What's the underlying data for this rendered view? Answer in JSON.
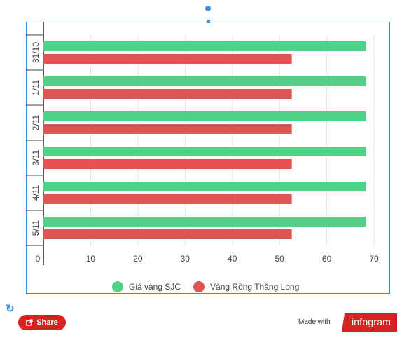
{
  "chart_data": {
    "type": "bar",
    "orientation": "horizontal",
    "categories": [
      "31/10",
      "1/11",
      "2/11",
      "3/11",
      "4/11",
      "5/11"
    ],
    "series": [
      {
        "name": "Giá vàng SJC",
        "color": "#52d087",
        "values": [
          68.3,
          68.3,
          68.3,
          68.3,
          68.3,
          68.3
        ]
      },
      {
        "name": "Vàng Rồng Thăng Long",
        "color": "#df5353",
        "values": [
          52.6,
          52.6,
          52.6,
          52.6,
          52.6,
          52.6
        ]
      }
    ],
    "xlim": [
      0,
      70
    ],
    "xticks": [
      "0",
      "10",
      "20",
      "30",
      "40",
      "50",
      "60",
      "70"
    ],
    "grid": true,
    "legend_position": "bottom"
  },
  "footer": {
    "share_label": "Share",
    "made_with_label": "Made with",
    "brand_label": "infogram"
  },
  "icons": {
    "refresh": "refresh-icon",
    "share": "share-icon"
  }
}
